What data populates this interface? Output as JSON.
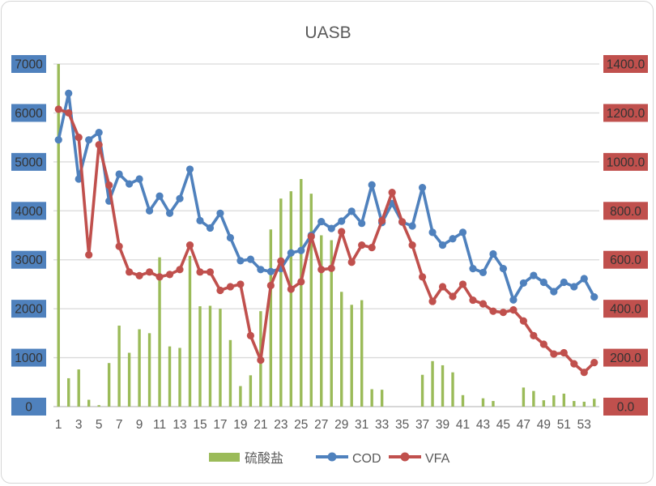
{
  "window": {
    "title": "UASB chart"
  },
  "colors": {
    "cod": "#4F81BD",
    "vfa": "#C0504D",
    "sulfate": "#9BBB59",
    "left_axis_chip": "#4F81BD",
    "right_axis_chip": "#C0504D",
    "axis_chip_text": "#333333",
    "gridline": "#D9D9D9",
    "axis_line": "#BFBFBF",
    "text": "#595959"
  },
  "chart_data": {
    "type": "combo",
    "title": "UASB",
    "legend_position": "bottom",
    "grid": true,
    "categories": [
      1,
      2,
      3,
      4,
      5,
      6,
      7,
      8,
      9,
      10,
      11,
      12,
      13,
      14,
      15,
      16,
      17,
      18,
      19,
      20,
      21,
      22,
      23,
      24,
      25,
      26,
      27,
      28,
      29,
      30,
      31,
      32,
      33,
      34,
      35,
      36,
      37,
      38,
      39,
      40,
      41,
      42,
      43,
      44,
      45,
      46,
      47,
      48,
      49,
      50,
      51,
      52,
      53,
      54
    ],
    "x_tick_labels": [
      "1",
      "3",
      "5",
      "7",
      "9",
      "11",
      "13",
      "15",
      "17",
      "19",
      "21",
      "23",
      "25",
      "27",
      "29",
      "31",
      "33",
      "35",
      "37",
      "39",
      "41",
      "43",
      "45",
      "47",
      "49",
      "51",
      "53"
    ],
    "left_axis": {
      "min": 0,
      "max": 7000,
      "step": 1000,
      "tick_labels": [
        "7000",
        "6000",
        "5000",
        "4000",
        "3000",
        "2000",
        "1000",
        "0"
      ]
    },
    "right_axis": {
      "min": 0,
      "max": 1400,
      "step": 200,
      "tick_labels": [
        "1400.0",
        "1200.0",
        "1000.0",
        "800.0",
        "600.0",
        "400.0",
        "200.0",
        "0.0"
      ]
    },
    "series": [
      {
        "name": "硫酸盐",
        "type": "bar",
        "axis": "left",
        "color": "#9BBB59",
        "values": [
          7000,
          580,
          760,
          140,
          30,
          890,
          1655,
          1100,
          1580,
          1500,
          3050,
          1230,
          1200,
          3080,
          2050,
          2060,
          2000,
          1360,
          420,
          640,
          1950,
          3620,
          4250,
          4400,
          4650,
          4350,
          3500,
          3400,
          2345,
          2080,
          2175,
          356,
          345,
          0,
          0,
          0,
          650,
          930,
          845,
          700,
          235,
          0,
          170,
          115,
          0,
          0,
          390,
          320,
          130,
          230,
          265,
          115,
          100,
          160
        ]
      },
      {
        "name": "COD",
        "type": "line",
        "axis": "left",
        "color": "#4F81BD",
        "values": [
          5450,
          6400,
          4650,
          5450,
          5600,
          4200,
          4750,
          4550,
          4650,
          4000,
          4300,
          3950,
          4250,
          4850,
          3800,
          3650,
          3950,
          3450,
          2980,
          3010,
          2800,
          2760,
          2820,
          3140,
          3190,
          3500,
          3780,
          3640,
          3790,
          3990,
          3745,
          4530,
          3760,
          4150,
          3770,
          3690,
          4475,
          3560,
          3300,
          3430,
          3560,
          2820,
          2740,
          3120,
          2820,
          2180,
          2525,
          2680,
          2540,
          2350,
          2540,
          2450,
          2615,
          2240
        ]
      },
      {
        "name": "VFA",
        "type": "line",
        "axis": "right",
        "color": "#C0504D",
        "values": [
          1215,
          1200,
          1100,
          620,
          1070,
          905,
          655,
          550,
          535,
          550,
          530,
          540,
          560,
          660,
          550,
          550,
          475,
          490,
          500,
          290,
          190,
          495,
          595,
          480,
          510,
          695,
          560,
          565,
          715,
          590,
          660,
          650,
          760,
          875,
          755,
          660,
          530,
          430,
          490,
          450,
          500,
          435,
          420,
          390,
          385,
          395,
          350,
          290,
          255,
          215,
          220,
          175,
          140,
          180
        ]
      }
    ]
  }
}
